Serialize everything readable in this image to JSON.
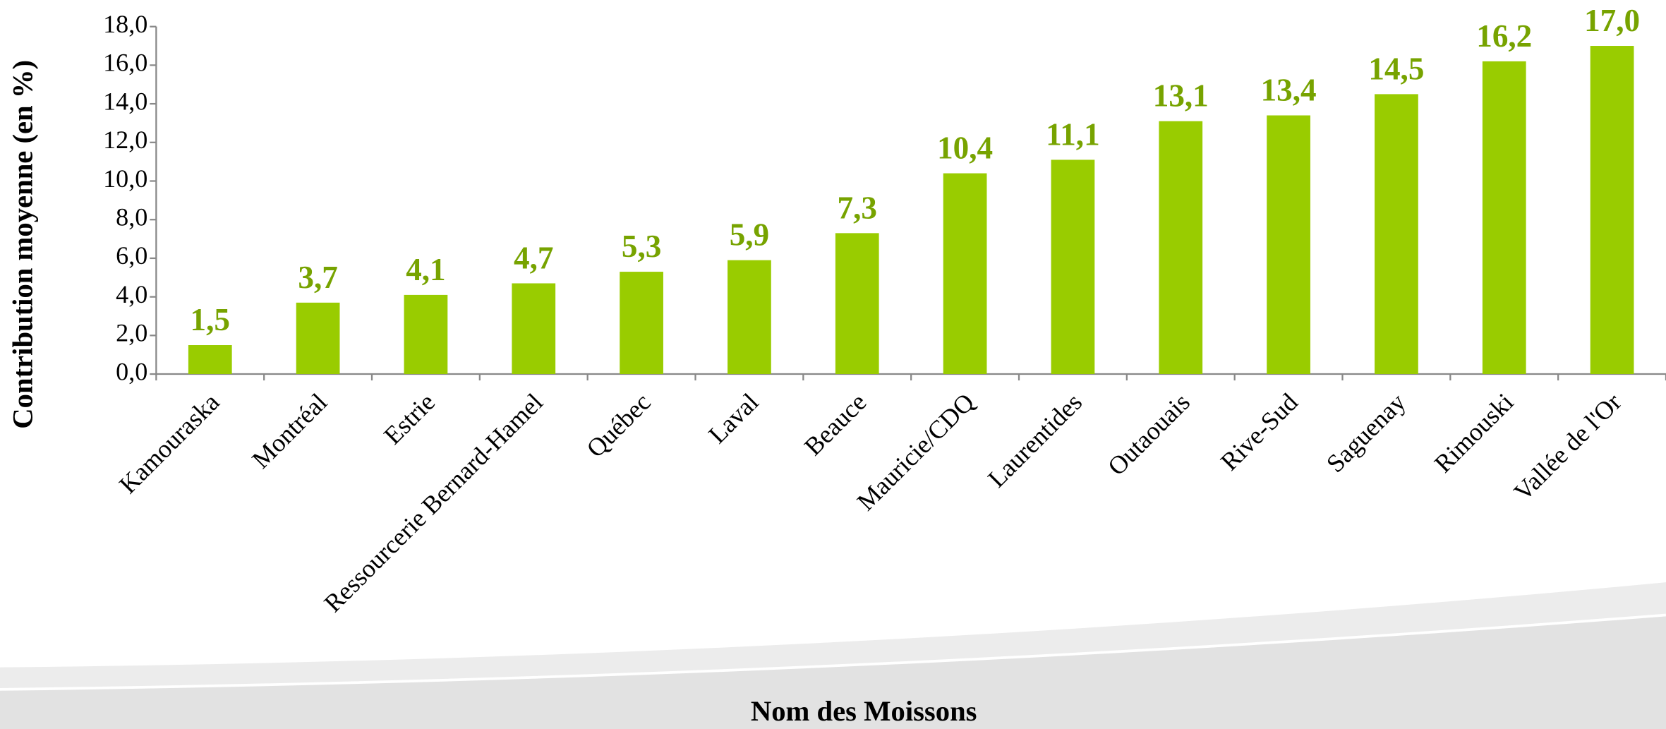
{
  "chart_data": {
    "type": "bar",
    "x_label": "Nom des Moissons",
    "y_label": "Contribution moyenne (en %)",
    "categories": [
      "Kamouraska",
      "Montréal",
      "Estrie",
      "Ressourcerie Bernard-Hamel",
      "Québec",
      "Laval",
      "Beauce",
      "Mauricie/CDQ",
      "Laurentides",
      "Outaouais",
      "Rive-Sud",
      "Saguenay",
      "Rimouski",
      "Vallée de l'Or"
    ],
    "values": [
      1.5,
      3.7,
      4.1,
      4.7,
      5.3,
      5.9,
      7.3,
      10.4,
      11.1,
      13.1,
      13.4,
      14.5,
      16.2,
      17.0
    ],
    "value_labels": [
      "1,5",
      "3,7",
      "4,1",
      "4,7",
      "5,3",
      "5,9",
      "7,3",
      "10,4",
      "11,1",
      "13,1",
      "13,4",
      "14,5",
      "16,2",
      "17,0"
    ],
    "color": "#99cc00",
    "ylim": [
      0,
      18
    ],
    "yticks": [
      {
        "value": 0,
        "label": "0,0"
      },
      {
        "value": 2,
        "label": "2,0"
      },
      {
        "value": 4,
        "label": "4,0"
      },
      {
        "value": 6,
        "label": "6,0"
      },
      {
        "value": 8,
        "label": "8,0"
      },
      {
        "value": 10,
        "label": "10,0"
      },
      {
        "value": 12,
        "label": "12,0"
      },
      {
        "value": 14,
        "label": "14,0"
      },
      {
        "value": 16,
        "label": "16,0"
      },
      {
        "value": 18,
        "label": "18,0"
      }
    ],
    "grid": false
  }
}
